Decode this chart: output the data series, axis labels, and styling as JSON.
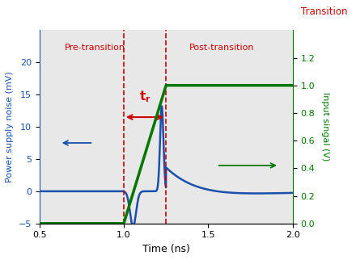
{
  "xlim": [
    0.5,
    2.0
  ],
  "ylim_left": [
    -5,
    25
  ],
  "ylim_right": [
    0,
    1.4
  ],
  "yticks_left": [
    -5,
    0,
    5,
    10,
    15,
    20
  ],
  "yticks_right": [
    0,
    0.2,
    0.4,
    0.6,
    0.8,
    1.0,
    1.2
  ],
  "xticks": [
    0.5,
    1.0,
    1.5,
    2.0
  ],
  "xlabel": "Time (ns)",
  "ylabel_left": "Power supply noise (mV)",
  "ylabel_right": "Input singal (V)",
  "transition_x1": 1.0,
  "transition_x2": 1.25,
  "pre_transition_label": "Pre-transition",
  "post_transition_label": "Post-transition",
  "transition_label": "Transition",
  "blue_color": "#1a4faa",
  "green_color": "#007700",
  "red_color": "#cc0000",
  "background_color": "#e8e8e8"
}
